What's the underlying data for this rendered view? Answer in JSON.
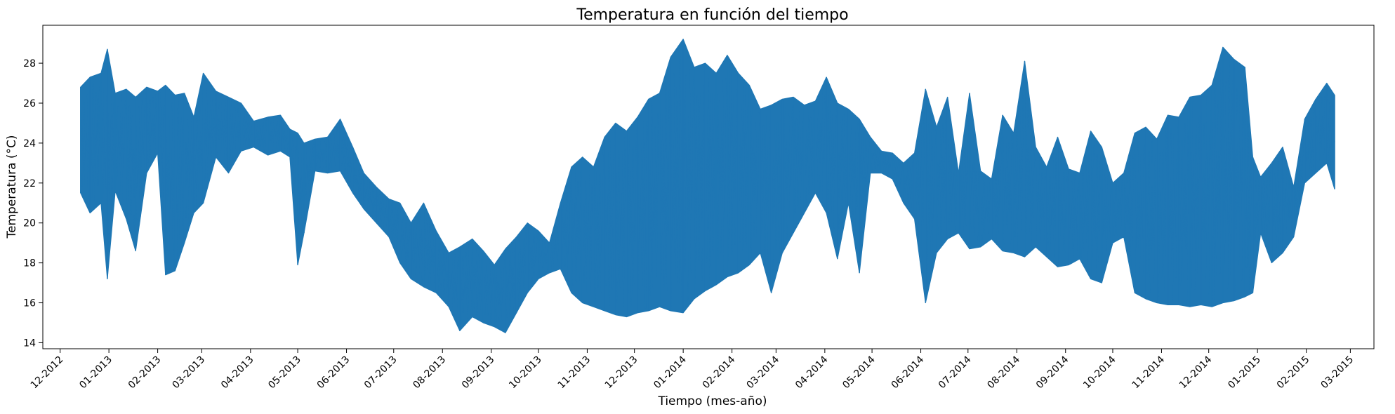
{
  "chart_data": {
    "type": "line",
    "title": "Temperatura en función del tiempo",
    "xlabel": "Tiempo (mes-año)",
    "ylabel": "Temperatura (°C)",
    "ylim": [
      13.7,
      29.9
    ],
    "xlim": [
      "2012-11-20",
      "2015-03-16"
    ],
    "grid": false,
    "color": "#1f77b4",
    "yticks": [
      14,
      16,
      18,
      20,
      22,
      24,
      26,
      28
    ],
    "xticks": [
      {
        "date": "2012-12-01",
        "label": "12-2012"
      },
      {
        "date": "2013-01-01",
        "label": "01-2013"
      },
      {
        "date": "2013-02-01",
        "label": "02-2013"
      },
      {
        "date": "2013-03-01",
        "label": "03-2013"
      },
      {
        "date": "2013-04-01",
        "label": "04-2013"
      },
      {
        "date": "2013-05-01",
        "label": "05-2013"
      },
      {
        "date": "2013-06-01",
        "label": "06-2013"
      },
      {
        "date": "2013-07-01",
        "label": "07-2013"
      },
      {
        "date": "2013-08-01",
        "label": "08-2013"
      },
      {
        "date": "2013-09-01",
        "label": "09-2013"
      },
      {
        "date": "2013-10-01",
        "label": "10-2013"
      },
      {
        "date": "2013-11-01",
        "label": "11-2013"
      },
      {
        "date": "2013-12-01",
        "label": "12-2013"
      },
      {
        "date": "2014-01-01",
        "label": "01-2014"
      },
      {
        "date": "2014-02-01",
        "label": "02-2014"
      },
      {
        "date": "2014-03-01",
        "label": "03-2014"
      },
      {
        "date": "2014-04-01",
        "label": "04-2014"
      },
      {
        "date": "2014-05-01",
        "label": "05-2014"
      },
      {
        "date": "2014-06-01",
        "label": "06-2014"
      },
      {
        "date": "2014-07-01",
        "label": "07-2014"
      },
      {
        "date": "2014-08-01",
        "label": "08-2014"
      },
      {
        "date": "2014-09-01",
        "label": "09-2014"
      },
      {
        "date": "2014-10-01",
        "label": "10-2014"
      },
      {
        "date": "2014-11-01",
        "label": "11-2014"
      },
      {
        "date": "2014-12-01",
        "label": "12-2014"
      },
      {
        "date": "2015-01-01",
        "label": "01-2015"
      },
      {
        "date": "2015-02-01",
        "label": "02-2015"
      },
      {
        "date": "2015-03-01",
        "label": "03-2015"
      }
    ],
    "series": [
      {
        "name": "",
        "points": [
          {
            "date": "2012-12-14",
            "low": 21.5,
            "high": 26.8
          },
          {
            "date": "2012-12-20",
            "low": 20.5,
            "high": 27.3
          },
          {
            "date": "2012-12-27",
            "low": 21.0,
            "high": 27.5
          },
          {
            "date": "2012-12-31",
            "low": 17.2,
            "high": 28.7
          },
          {
            "date": "2013-01-05",
            "low": 21.6,
            "high": 26.5
          },
          {
            "date": "2013-01-12",
            "low": 20.2,
            "high": 26.7
          },
          {
            "date": "2013-01-18",
            "low": 18.6,
            "high": 26.3
          },
          {
            "date": "2013-01-25",
            "low": 22.5,
            "high": 26.8
          },
          {
            "date": "2013-02-01",
            "low": 23.5,
            "high": 26.6
          },
          {
            "date": "2013-02-06",
            "low": 17.4,
            "high": 26.9
          },
          {
            "date": "2013-02-12",
            "low": 17.6,
            "high": 26.4
          },
          {
            "date": "2013-02-18",
            "low": 19.0,
            "high": 26.5
          },
          {
            "date": "2013-02-24",
            "low": 20.5,
            "high": 25.3
          },
          {
            "date": "2013-03-02",
            "low": 21.0,
            "high": 27.5
          },
          {
            "date": "2013-03-10",
            "low": 23.3,
            "high": 26.6
          },
          {
            "date": "2013-03-18",
            "low": 22.5,
            "high": 26.3
          },
          {
            "date": "2013-03-26",
            "low": 23.6,
            "high": 26.0
          },
          {
            "date": "2013-04-03",
            "low": 23.8,
            "high": 25.1
          },
          {
            "date": "2013-04-12",
            "low": 23.4,
            "high": 25.3
          },
          {
            "date": "2013-04-20",
            "low": 23.6,
            "high": 25.4
          },
          {
            "date": "2013-04-26",
            "low": 23.3,
            "high": 24.7
          },
          {
            "date": "2013-05-01",
            "low": 17.9,
            "high": 24.5
          },
          {
            "date": "2013-05-05",
            "low": 19.5,
            "high": 24.0
          },
          {
            "date": "2013-05-12",
            "low": 22.6,
            "high": 24.2
          },
          {
            "date": "2013-05-20",
            "low": 22.5,
            "high": 24.3
          },
          {
            "date": "2013-05-28",
            "low": 22.6,
            "high": 25.2
          },
          {
            "date": "2013-06-05",
            "low": 21.5,
            "high": 23.8
          },
          {
            "date": "2013-06-12",
            "low": 20.7,
            "high": 22.5
          },
          {
            "date": "2013-06-20",
            "low": 20.0,
            "high": 21.8
          },
          {
            "date": "2013-06-28",
            "low": 19.3,
            "high": 21.2
          },
          {
            "date": "2013-07-05",
            "low": 18.0,
            "high": 21.0
          },
          {
            "date": "2013-07-12",
            "low": 17.2,
            "high": 20.0
          },
          {
            "date": "2013-07-20",
            "low": 16.8,
            "high": 21.0
          },
          {
            "date": "2013-07-28",
            "low": 16.5,
            "high": 19.6
          },
          {
            "date": "2013-08-05",
            "low": 15.8,
            "high": 18.5
          },
          {
            "date": "2013-08-12",
            "low": 14.6,
            "high": 18.8
          },
          {
            "date": "2013-08-20",
            "low": 15.3,
            "high": 19.2
          },
          {
            "date": "2013-08-27",
            "low": 15.0,
            "high": 18.6
          },
          {
            "date": "2013-09-03",
            "low": 14.8,
            "high": 17.9
          },
          {
            "date": "2013-09-10",
            "low": 14.5,
            "high": 18.7
          },
          {
            "date": "2013-09-17",
            "low": 15.5,
            "high": 19.3
          },
          {
            "date": "2013-09-24",
            "low": 16.5,
            "high": 20.0
          },
          {
            "date": "2013-10-01",
            "low": 17.2,
            "high": 19.6
          },
          {
            "date": "2013-10-08",
            "low": 17.5,
            "high": 19.0
          },
          {
            "date": "2013-10-15",
            "low": 17.7,
            "high": 21.0
          },
          {
            "date": "2013-10-22",
            "low": 16.5,
            "high": 22.8
          },
          {
            "date": "2013-10-29",
            "low": 16.0,
            "high": 23.3
          },
          {
            "date": "2013-11-05",
            "low": 15.8,
            "high": 22.8
          },
          {
            "date": "2013-11-12",
            "low": 15.6,
            "high": 24.3
          },
          {
            "date": "2013-11-19",
            "low": 15.4,
            "high": 25.0
          },
          {
            "date": "2013-11-26",
            "low": 15.3,
            "high": 24.6
          },
          {
            "date": "2013-12-03",
            "low": 15.5,
            "high": 25.3
          },
          {
            "date": "2013-12-10",
            "low": 15.6,
            "high": 26.2
          },
          {
            "date": "2013-12-17",
            "low": 15.8,
            "high": 26.5
          },
          {
            "date": "2013-12-24",
            "low": 15.6,
            "high": 28.3
          },
          {
            "date": "2014-01-01",
            "low": 15.5,
            "high": 29.2
          },
          {
            "date": "2014-01-08",
            "low": 16.2,
            "high": 27.8
          },
          {
            "date": "2014-01-15",
            "low": 16.6,
            "high": 28.0
          },
          {
            "date": "2014-01-22",
            "low": 16.9,
            "high": 27.5
          },
          {
            "date": "2014-01-29",
            "low": 17.3,
            "high": 28.4
          },
          {
            "date": "2014-02-05",
            "low": 17.5,
            "high": 27.5
          },
          {
            "date": "2014-02-12",
            "low": 17.9,
            "high": 26.9
          },
          {
            "date": "2014-02-19",
            "low": 18.5,
            "high": 25.7
          },
          {
            "date": "2014-02-26",
            "low": 16.5,
            "high": 25.9
          },
          {
            "date": "2014-03-05",
            "low": 18.5,
            "high": 26.2
          },
          {
            "date": "2014-03-12",
            "low": 19.5,
            "high": 26.3
          },
          {
            "date": "2014-03-19",
            "low": 20.5,
            "high": 25.9
          },
          {
            "date": "2014-03-26",
            "low": 21.5,
            "high": 26.1
          },
          {
            "date": "2014-04-02",
            "low": 20.5,
            "high": 27.3
          },
          {
            "date": "2014-04-09",
            "low": 18.2,
            "high": 26.0
          },
          {
            "date": "2014-04-16",
            "low": 21.0,
            "high": 25.7
          },
          {
            "date": "2014-04-23",
            "low": 17.5,
            "high": 25.2
          },
          {
            "date": "2014-04-30",
            "low": 22.5,
            "high": 24.3
          },
          {
            "date": "2014-05-07",
            "low": 22.5,
            "high": 23.6
          },
          {
            "date": "2014-05-14",
            "low": 22.2,
            "high": 23.5
          },
          {
            "date": "2014-05-21",
            "low": 21.0,
            "high": 23.0
          },
          {
            "date": "2014-05-28",
            "low": 20.2,
            "high": 23.5
          },
          {
            "date": "2014-06-04",
            "low": 16.0,
            "high": 26.7
          },
          {
            "date": "2014-06-11",
            "low": 18.5,
            "high": 24.8
          },
          {
            "date": "2014-06-18",
            "low": 19.2,
            "high": 26.3
          },
          {
            "date": "2014-06-25",
            "low": 19.5,
            "high": 22.5
          },
          {
            "date": "2014-07-02",
            "low": 18.7,
            "high": 26.5
          },
          {
            "date": "2014-07-09",
            "low": 18.8,
            "high": 22.6
          },
          {
            "date": "2014-07-16",
            "low": 19.2,
            "high": 22.2
          },
          {
            "date": "2014-07-23",
            "low": 18.6,
            "high": 25.4
          },
          {
            "date": "2014-07-30",
            "low": 18.5,
            "high": 24.5
          },
          {
            "date": "2014-08-06",
            "low": 18.3,
            "high": 28.1
          },
          {
            "date": "2014-08-13",
            "low": 18.8,
            "high": 23.8
          },
          {
            "date": "2014-08-20",
            "low": 18.3,
            "high": 22.8
          },
          {
            "date": "2014-08-27",
            "low": 17.8,
            "high": 24.3
          },
          {
            "date": "2014-09-03",
            "low": 17.9,
            "high": 22.7
          },
          {
            "date": "2014-09-10",
            "low": 18.2,
            "high": 22.5
          },
          {
            "date": "2014-09-17",
            "low": 17.2,
            "high": 24.6
          },
          {
            "date": "2014-09-24",
            "low": 17.0,
            "high": 23.8
          },
          {
            "date": "2014-10-01",
            "low": 19.0,
            "high": 22.0
          },
          {
            "date": "2014-10-08",
            "low": 19.3,
            "high": 22.5
          },
          {
            "date": "2014-10-15",
            "low": 16.5,
            "high": 24.5
          },
          {
            "date": "2014-10-22",
            "low": 16.2,
            "high": 24.8
          },
          {
            "date": "2014-10-29",
            "low": 16.0,
            "high": 24.2
          },
          {
            "date": "2014-11-05",
            "low": 15.9,
            "high": 25.4
          },
          {
            "date": "2014-11-12",
            "low": 15.9,
            "high": 25.3
          },
          {
            "date": "2014-11-19",
            "low": 15.8,
            "high": 26.3
          },
          {
            "date": "2014-11-26",
            "low": 15.9,
            "high": 26.4
          },
          {
            "date": "2014-12-03",
            "low": 15.8,
            "high": 26.9
          },
          {
            "date": "2014-12-10",
            "low": 16.0,
            "high": 28.8
          },
          {
            "date": "2014-12-17",
            "low": 16.1,
            "high": 28.2
          },
          {
            "date": "2014-12-24",
            "low": 16.3,
            "high": 27.8
          },
          {
            "date": "2014-12-29",
            "low": 16.5,
            "high": 23.3
          },
          {
            "date": "2015-01-03",
            "low": 19.5,
            "high": 22.3
          },
          {
            "date": "2015-01-10",
            "low": 18.0,
            "high": 23.0
          },
          {
            "date": "2015-01-17",
            "low": 18.5,
            "high": 23.8
          },
          {
            "date": "2015-01-24",
            "low": 19.3,
            "high": 21.8
          },
          {
            "date": "2015-01-31",
            "low": 22.0,
            "high": 25.2
          },
          {
            "date": "2015-02-07",
            "low": 22.5,
            "high": 26.2
          },
          {
            "date": "2015-02-14",
            "low": 23.0,
            "high": 27.0
          },
          {
            "date": "2015-02-19",
            "low": 21.7,
            "high": 26.4
          }
        ]
      }
    ]
  }
}
